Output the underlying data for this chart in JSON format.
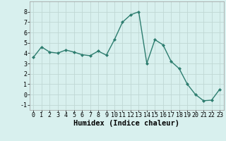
{
  "x": [
    0,
    1,
    2,
    3,
    4,
    5,
    6,
    7,
    8,
    9,
    10,
    11,
    12,
    13,
    14,
    15,
    16,
    17,
    18,
    19,
    20,
    21,
    22,
    23
  ],
  "y": [
    3.6,
    4.6,
    4.1,
    4.0,
    4.3,
    4.1,
    3.85,
    3.75,
    4.2,
    3.8,
    5.3,
    7.0,
    7.7,
    8.0,
    3.0,
    5.3,
    4.8,
    3.2,
    2.5,
    1.0,
    0.0,
    -0.6,
    -0.55,
    0.5
  ],
  "line_color": "#2d7d6f",
  "marker": "D",
  "marker_size": 2.0,
  "bg_color": "#d8f0ee",
  "grid_color": "#c0d8d4",
  "xlabel": "Humidex (Indice chaleur)",
  "ylim": [
    -1.5,
    9.0
  ],
  "xlim": [
    -0.5,
    23.5
  ],
  "yticks": [
    -1,
    0,
    1,
    2,
    3,
    4,
    5,
    6,
    7,
    8
  ],
  "xticks": [
    0,
    1,
    2,
    3,
    4,
    5,
    6,
    7,
    8,
    9,
    10,
    11,
    12,
    13,
    14,
    15,
    16,
    17,
    18,
    19,
    20,
    21,
    22,
    23
  ],
  "xlabel_fontsize": 7.5,
  "tick_fontsize": 6.0,
  "linewidth": 1.0
}
